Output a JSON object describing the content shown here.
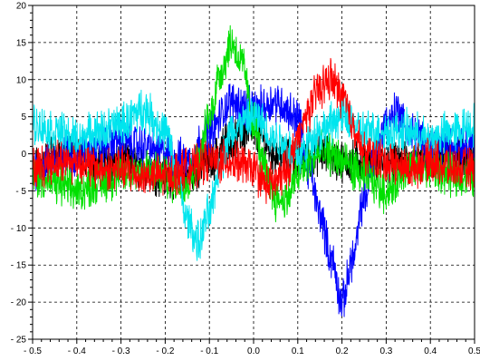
{
  "chart_data": {
    "type": "line",
    "title": "",
    "xlabel": "",
    "ylabel": "",
    "xlim": [
      -0.5,
      0.5
    ],
    "ylim": [
      -25,
      20
    ],
    "grid": true,
    "grid_style": "dashed",
    "legend": "none",
    "x_ticks": [
      -0.5,
      -0.4,
      -0.3,
      -0.2,
      -0.1,
      0.0,
      0.1,
      0.2,
      0.3,
      0.4,
      0.5
    ],
    "x_tick_labels": [
      "- 0.5",
      "- 0.4",
      "- 0.3",
      "- 0.2",
      "- 0.1",
      "0.0",
      "0.1",
      "0.2",
      "0.3",
      "0.4",
      "0.5"
    ],
    "y_ticks": [
      20,
      15,
      10,
      5,
      0,
      -5,
      -10,
      -15,
      -20,
      -25
    ],
    "y_tick_labels": [
      "20",
      "15",
      "10",
      "5",
      "0",
      "- 5",
      "- 10",
      "- 15",
      "- 20",
      "- 25"
    ],
    "noise_amplitude": 2.2,
    "series": [
      {
        "color": "#000000",
        "x": [
          -0.5,
          -0.45,
          -0.4,
          -0.35,
          -0.3,
          -0.25,
          -0.2,
          -0.15,
          -0.1,
          -0.05,
          0.0,
          0.05,
          0.1,
          0.15,
          0.2,
          0.25,
          0.3,
          0.35,
          0.4,
          0.45,
          0.5
        ],
        "values": [
          -2,
          0,
          0,
          -1,
          -1,
          -2,
          -3,
          -3,
          -1,
          2,
          3,
          0,
          -1,
          0,
          -1,
          -1,
          -1,
          -1,
          -1,
          0,
          -1
        ]
      },
      {
        "color": "#0000ff",
        "x": [
          -0.5,
          -0.45,
          -0.4,
          -0.35,
          -0.3,
          -0.25,
          -0.2,
          -0.15,
          -0.1,
          -0.05,
          0.0,
          0.05,
          0.1,
          0.125,
          0.15,
          0.175,
          0.2,
          0.225,
          0.25,
          0.275,
          0.3,
          0.325,
          0.35,
          0.4,
          0.45,
          0.5
        ],
        "values": [
          -2,
          -1,
          0,
          1,
          2,
          1,
          0,
          -1,
          3,
          7,
          6,
          7,
          5,
          -2,
          -8,
          -14,
          -20,
          -14,
          -6,
          0,
          4,
          6,
          3,
          1,
          1,
          2
        ]
      },
      {
        "color": "#00e000",
        "x": [
          -0.5,
          -0.45,
          -0.4,
          -0.35,
          -0.3,
          -0.25,
          -0.2,
          -0.175,
          -0.15,
          -0.125,
          -0.1,
          -0.075,
          -0.05,
          -0.025,
          0.0,
          0.025,
          0.05,
          0.075,
          0.1,
          0.125,
          0.15,
          0.175,
          0.2,
          0.25,
          0.3,
          0.35,
          0.4,
          0.45,
          0.5
        ],
        "values": [
          -3,
          -4,
          -5,
          -4,
          -3,
          -2,
          -3,
          -4,
          -4,
          -1,
          5,
          11,
          15,
          12,
          4,
          -2,
          -6,
          -6,
          -3,
          -1,
          0,
          0,
          -1,
          -3,
          -5,
          -2,
          -2,
          -3,
          -3
        ]
      },
      {
        "color": "#00e5ee",
        "x": [
          -0.5,
          -0.45,
          -0.4,
          -0.35,
          -0.3,
          -0.25,
          -0.2,
          -0.175,
          -0.15,
          -0.125,
          -0.1,
          -0.075,
          -0.05,
          -0.025,
          0.0,
          0.05,
          0.1,
          0.15,
          0.2,
          0.25,
          0.3,
          0.35,
          0.4,
          0.45,
          0.5
        ],
        "values": [
          4,
          3,
          2,
          3,
          4,
          6,
          3,
          -2,
          -9,
          -12,
          -8,
          -1,
          3,
          4,
          5,
          2,
          0,
          3,
          5,
          3,
          3,
          3,
          2,
          3,
          4
        ]
      },
      {
        "color": "#ff0000",
        "x": [
          -0.5,
          -0.45,
          -0.4,
          -0.35,
          -0.3,
          -0.25,
          -0.2,
          -0.15,
          -0.1,
          -0.05,
          0.0,
          0.025,
          0.05,
          0.075,
          0.1,
          0.125,
          0.15,
          0.175,
          0.2,
          0.225,
          0.25,
          0.3,
          0.35,
          0.4,
          0.45,
          0.5
        ],
        "values": [
          -2,
          -1,
          -1,
          -2,
          -2,
          -3,
          -3,
          -2,
          -1,
          -1,
          -2,
          -4,
          -4,
          -2,
          2,
          6,
          9,
          10,
          8,
          4,
          0,
          -1,
          -2,
          -1,
          -2,
          -2
        ]
      }
    ]
  }
}
